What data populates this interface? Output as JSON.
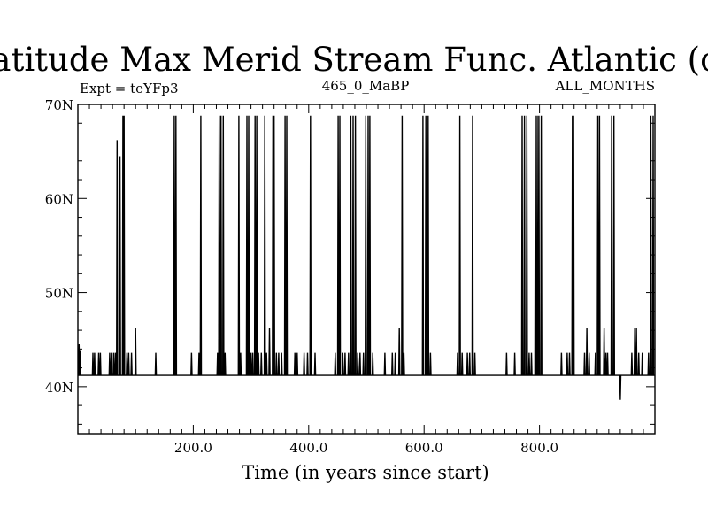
{
  "chart_data": {
    "type": "line",
    "title": "Latitude Max Merid Stream Func. Atlantic (oN)",
    "subtitle_left": "Expt = teYFp3",
    "subtitle_center": "465_0_MaBP",
    "subtitle_right": "ALL_MONTHS",
    "xlabel": "Time (in years since start)",
    "ylabel": "",
    "xlim": [
      0,
      1000
    ],
    "ylim": [
      35,
      70
    ],
    "xticks": [
      200,
      400,
      600,
      800
    ],
    "xtick_labels": [
      "200.0",
      "400.0",
      "600.0",
      "800.0"
    ],
    "yticks": [
      40,
      50,
      60,
      70
    ],
    "ytick_labels": [
      "40N",
      "50N",
      "60N",
      "70N"
    ],
    "baseline": 41.2,
    "series": [
      {
        "spikes": [
          [
            2,
            44.5
          ],
          [
            4,
            43.8
          ],
          [
            26,
            43.6
          ],
          [
            29,
            43.6
          ],
          [
            36,
            43.6
          ],
          [
            39,
            43.6
          ],
          [
            55,
            43.6
          ],
          [
            58,
            43.6
          ],
          [
            62,
            43.6
          ],
          [
            65,
            43.6
          ],
          [
            68,
            66.2
          ],
          [
            73,
            64.5
          ],
          [
            78,
            68.8
          ],
          [
            80,
            68.8
          ],
          [
            85,
            43.6
          ],
          [
            88,
            43.6
          ],
          [
            93,
            43.6
          ],
          [
            100,
            46.2
          ],
          [
            135,
            43.6
          ],
          [
            167,
            68.8
          ],
          [
            170,
            68.8
          ],
          [
            197,
            43.6
          ],
          [
            210,
            43.6
          ],
          [
            213,
            68.8
          ],
          [
            242,
            43.6
          ],
          [
            245,
            68.8
          ],
          [
            248,
            68.8
          ],
          [
            252,
            68.8
          ],
          [
            255,
            43.6
          ],
          [
            279,
            68.8
          ],
          [
            282,
            43.6
          ],
          [
            293,
            68.8
          ],
          [
            296,
            68.8
          ],
          [
            300,
            43.6
          ],
          [
            303,
            43.6
          ],
          [
            307,
            68.8
          ],
          [
            310,
            68.8
          ],
          [
            313,
            43.6
          ],
          [
            318,
            43.6
          ],
          [
            324,
            68.8
          ],
          [
            327,
            43.6
          ],
          [
            332,
            46.2
          ],
          [
            338,
            68.8
          ],
          [
            340,
            68.8
          ],
          [
            344,
            43.6
          ],
          [
            348,
            43.6
          ],
          [
            353,
            43.6
          ],
          [
            359,
            68.8
          ],
          [
            362,
            68.8
          ],
          [
            376,
            43.6
          ],
          [
            380,
            43.6
          ],
          [
            392,
            43.6
          ],
          [
            398,
            43.6
          ],
          [
            403,
            68.8
          ],
          [
            411,
            43.6
          ],
          [
            446,
            43.6
          ],
          [
            451,
            68.8
          ],
          [
            454,
            68.8
          ],
          [
            459,
            43.6
          ],
          [
            463,
            43.6
          ],
          [
            469,
            43.6
          ],
          [
            473,
            68.8
          ],
          [
            477,
            68.8
          ],
          [
            481,
            68.8
          ],
          [
            485,
            43.6
          ],
          [
            489,
            43.6
          ],
          [
            495,
            43.6
          ],
          [
            499,
            68.8
          ],
          [
            503,
            68.8
          ],
          [
            506,
            68.8
          ],
          [
            511,
            43.6
          ],
          [
            532,
            43.6
          ],
          [
            545,
            43.6
          ],
          [
            550,
            43.6
          ],
          [
            557,
            46.2
          ],
          [
            562,
            68.8
          ],
          [
            565,
            43.6
          ],
          [
            598,
            68.8
          ],
          [
            603,
            68.8
          ],
          [
            607,
            68.8
          ],
          [
            611,
            43.6
          ],
          [
            658,
            43.6
          ],
          [
            662,
            68.8
          ],
          [
            666,
            43.6
          ],
          [
            675,
            43.6
          ],
          [
            679,
            43.6
          ],
          [
            684,
            68.8
          ],
          [
            688,
            43.6
          ],
          [
            743,
            43.6
          ],
          [
            757,
            43.6
          ],
          [
            770,
            68.8
          ],
          [
            774,
            68.8
          ],
          [
            778,
            68.8
          ],
          [
            782,
            43.6
          ],
          [
            786,
            43.6
          ],
          [
            793,
            68.8
          ],
          [
            796,
            68.8
          ],
          [
            799,
            68.8
          ],
          [
            803,
            68.8
          ],
          [
            838,
            43.6
          ],
          [
            848,
            43.6
          ],
          [
            852,
            43.6
          ],
          [
            857,
            68.8
          ],
          [
            859,
            68.8
          ],
          [
            878,
            43.6
          ],
          [
            882,
            46.2
          ],
          [
            886,
            43.6
          ],
          [
            897,
            43.6
          ],
          [
            901,
            68.8
          ],
          [
            904,
            68.8
          ],
          [
            912,
            46.2
          ],
          [
            915,
            43.6
          ],
          [
            918,
            43.6
          ],
          [
            925,
            68.8
          ],
          [
            929,
            68.8
          ],
          [
            940,
            38.6
          ],
          [
            960,
            43.6
          ],
          [
            965,
            46.2
          ],
          [
            968,
            46.2
          ],
          [
            972,
            43.6
          ],
          [
            978,
            43.6
          ],
          [
            989,
            43.6
          ],
          [
            993,
            68.8
          ],
          [
            997,
            68.8
          ]
        ]
      }
    ]
  }
}
